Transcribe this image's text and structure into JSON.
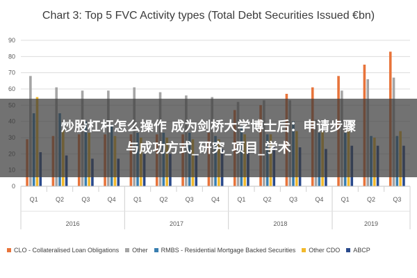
{
  "chart_data": {
    "type": "bar",
    "title": "Chart 3: Top 5 FVC Activity types (Total Debt Securities Issued €bn)",
    "ylim": [
      0,
      90
    ],
    "yticks": [
      "0",
      "10",
      "20",
      "30",
      "40",
      "50",
      "60",
      "70",
      "80",
      "90"
    ],
    "grid": true,
    "legend_position": "bottom",
    "categories": [
      "Q1",
      "Q2",
      "Q3",
      "Q4",
      "Q1",
      "Q2",
      "Q3",
      "Q4",
      "Q1",
      "Q2",
      "Q3",
      "Q4",
      "Q1",
      "Q2",
      "Q3"
    ],
    "years": [
      {
        "label": "2016",
        "count": 4
      },
      {
        "label": "2017",
        "count": 4
      },
      {
        "label": "2018",
        "count": 4
      },
      {
        "label": "2019",
        "count": 3
      }
    ],
    "series": [
      {
        "name": "CLO - Collateralised Loan Obligations",
        "color": "#e8743b",
        "values": [
          29,
          31,
          32,
          32,
          32,
          32,
          32,
          33,
          47,
          50,
          57,
          61,
          68,
          75,
          83
        ]
      },
      {
        "name": "Other",
        "color": "#a5a5a5",
        "values": [
          68,
          61,
          59,
          59,
          61,
          58,
          56,
          55,
          52,
          53,
          53,
          41,
          59,
          66,
          67
        ]
      },
      {
        "name": "RMBS - Residential Mortgage Backed Securities",
        "color": "#3a7fb0",
        "values": [
          45,
          45,
          40,
          38,
          33,
          33,
          33,
          31,
          37,
          32,
          40,
          33,
          33,
          31,
          31
        ]
      },
      {
        "name": "Other CDO",
        "color": "#f2b92b",
        "values": [
          55,
          35,
          33,
          31,
          30,
          30,
          29,
          29,
          32,
          32,
          34,
          34,
          35,
          30,
          34
        ]
      },
      {
        "name": "ABCP",
        "color": "#2a4a8c",
        "values": [
          21,
          19,
          17,
          17,
          20,
          20,
          20,
          23,
          24,
          24,
          24,
          23,
          25,
          25,
          25
        ]
      }
    ]
  },
  "overlay": {
    "line1": "炒股杠杆怎么操作 成为剑桥大学博士后：申请步骤",
    "line2": "与成功方式_研究_项目_学术"
  }
}
